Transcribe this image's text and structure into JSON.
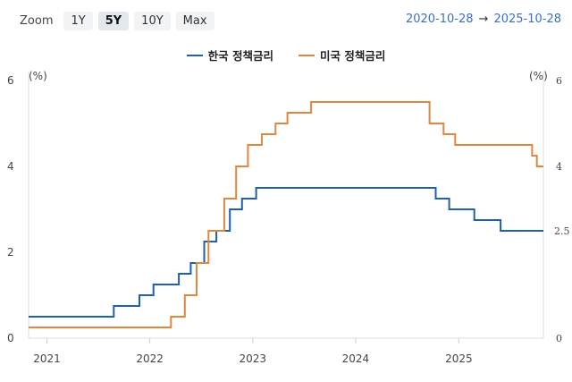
{
  "toolbar": {
    "zoom_label": "Zoom",
    "buttons": [
      "1Y",
      "5Y",
      "10Y",
      "Max"
    ],
    "active": "5Y",
    "range_from": "2020-10-28",
    "range_arrow": "→",
    "range_to": "2025-10-28"
  },
  "colors": {
    "korea": "#1f5fb0",
    "us": "#e0873f",
    "range_text": "#3a6fc4"
  },
  "chart_data": {
    "type": "line",
    "step": true,
    "x_ticks": [
      "2021",
      "2022",
      "2023",
      "2024",
      "2025"
    ],
    "y_left": {
      "unit": "(%)",
      "ticks": [
        "0",
        "2",
        "4",
        "6"
      ],
      "range": [
        0,
        6
      ]
    },
    "y_right": {
      "unit": "(%)",
      "ticks": [
        "0",
        "4",
        "6"
      ],
      "range": [
        0,
        6
      ],
      "last_value_label": "2.5"
    },
    "x_range": [
      "2020-10-28",
      "2025-10-28"
    ],
    "series": [
      {
        "name": "한국 정책금리",
        "color": "#1f5fb0",
        "points": [
          [
            "2020-10-28",
            0.5
          ],
          [
            "2021-08-26",
            0.75
          ],
          [
            "2021-11-25",
            1.0
          ],
          [
            "2022-01-14",
            1.25
          ],
          [
            "2022-04-14",
            1.5
          ],
          [
            "2022-05-26",
            1.75
          ],
          [
            "2022-07-13",
            2.25
          ],
          [
            "2022-08-25",
            2.5
          ],
          [
            "2022-10-12",
            3.0
          ],
          [
            "2022-11-24",
            3.25
          ],
          [
            "2023-01-13",
            3.5
          ],
          [
            "2024-10-11",
            3.25
          ],
          [
            "2024-11-28",
            3.0
          ],
          [
            "2025-02-25",
            2.75
          ],
          [
            "2025-05-29",
            2.5
          ],
          [
            "2025-10-28",
            2.5
          ]
        ]
      },
      {
        "name": "미국 정책금리",
        "color": "#e0873f",
        "points": [
          [
            "2020-10-28",
            0.25
          ],
          [
            "2022-03-17",
            0.5
          ],
          [
            "2022-05-05",
            1.0
          ],
          [
            "2022-06-16",
            1.75
          ],
          [
            "2022-07-28",
            2.5
          ],
          [
            "2022-09-22",
            3.25
          ],
          [
            "2022-11-03",
            4.0
          ],
          [
            "2022-12-15",
            4.5
          ],
          [
            "2023-02-02",
            4.75
          ],
          [
            "2023-03-23",
            5.0
          ],
          [
            "2023-05-04",
            5.25
          ],
          [
            "2023-07-27",
            5.5
          ],
          [
            "2024-09-19",
            5.0
          ],
          [
            "2024-11-08",
            4.75
          ],
          [
            "2024-12-19",
            4.5
          ],
          [
            "2025-09-18",
            4.25
          ],
          [
            "2025-10-05",
            4.0
          ],
          [
            "2025-10-28",
            4.0
          ]
        ]
      }
    ]
  }
}
